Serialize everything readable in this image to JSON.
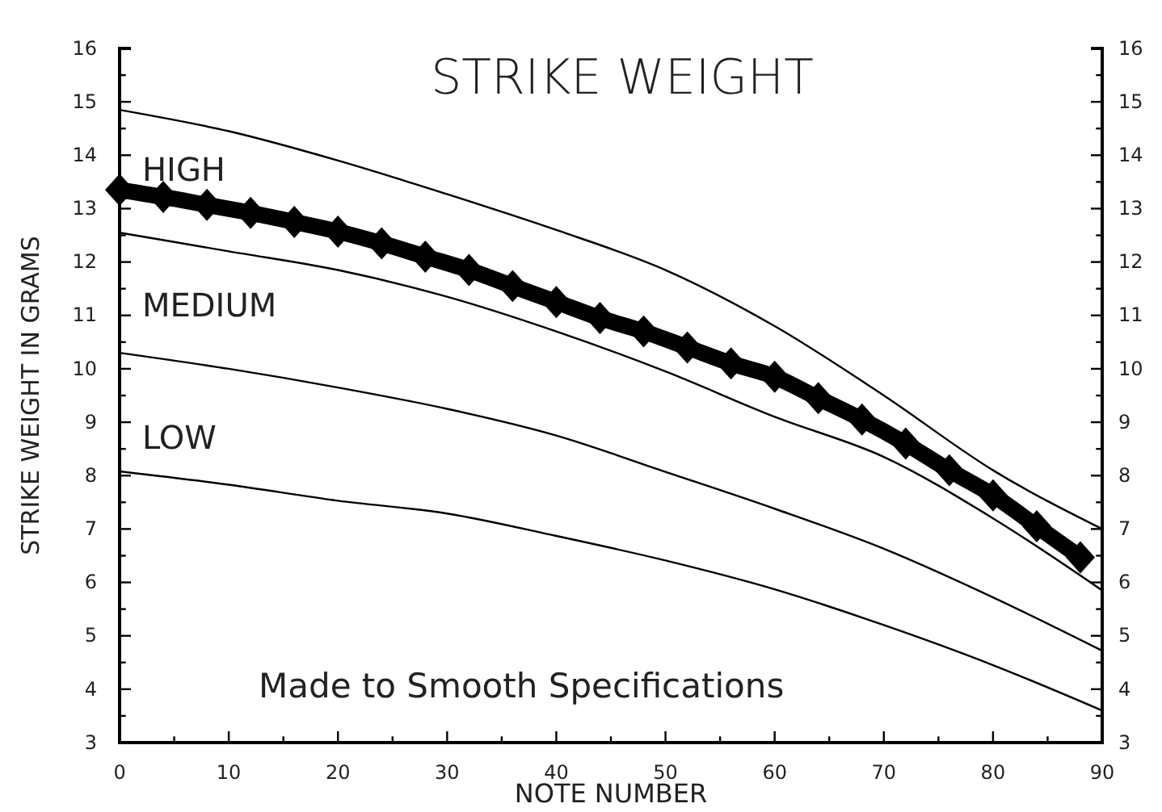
{
  "chart_data": {
    "type": "line",
    "title": "STRIKE WEIGHT",
    "xlabel": "NOTE NUMBER",
    "ylabel": "STRIKE WEIGHT IN GRAMS",
    "annotations": [
      "HIGH",
      "MEDIUM",
      "LOW",
      "Made to Smooth Specifications"
    ],
    "xlim": [
      0,
      90
    ],
    "xticks": [
      0,
      {
        "value": 5,
        "label": null
      },
      10,
      {
        "value": 15,
        "label": null
      },
      20,
      {
        "value": 25,
        "label": null
      },
      30,
      {
        "value": 35,
        "label": null
      },
      40,
      {
        "value": 45,
        "label": null
      },
      50,
      {
        "value": 55,
        "label": null
      },
      60,
      {
        "value": 65,
        "label": null
      },
      70,
      {
        "value": 75,
        "label": null
      },
      80,
      {
        "value": 85,
        "label": null
      },
      90
    ],
    "ylim": [
      3,
      16
    ],
    "yticks": [
      3,
      {
        "value": 3.5,
        "label": null
      },
      4,
      {
        "value": 4.5,
        "label": null
      },
      5,
      {
        "value": 5.5,
        "label": null
      },
      6,
      {
        "value": 6.5,
        "label": null
      },
      7,
      {
        "value": 7.5,
        "label": null
      },
      8,
      {
        "value": 8.5,
        "label": null
      },
      9,
      {
        "value": 9.5,
        "label": null
      },
      10,
      {
        "value": 10.5,
        "label": null
      },
      11,
      {
        "value": 11.5,
        "label": null
      },
      12,
      {
        "value": 12.5,
        "label": null
      },
      13,
      {
        "value": 13.5,
        "label": null
      },
      14,
      {
        "value": 14.5,
        "label": null
      },
      15,
      {
        "value": 15.5,
        "label": null
      },
      16
    ],
    "y2lim": [
      3,
      16
    ],
    "y2ticks": [
      3,
      {
        "value": 3.5,
        "label": null
      },
      4,
      {
        "value": 4.5,
        "label": null
      },
      5,
      {
        "value": 5.5,
        "label": null
      },
      6,
      {
        "value": 6.5,
        "label": null
      },
      7,
      {
        "value": 7.5,
        "label": null
      },
      8,
      {
        "value": 8.5,
        "label": null
      },
      9,
      {
        "value": 9.5,
        "label": null
      },
      10,
      {
        "value": 10.5,
        "label": null
      },
      11,
      {
        "value": 11.5,
        "label": null
      },
      12,
      {
        "value": 12.5,
        "label": null
      },
      13,
      {
        "value": 13.5,
        "label": null
      },
      14,
      {
        "value": 14.5,
        "label": null
      },
      15,
      {
        "value": 15.5,
        "label": null
      },
      16
    ],
    "grid": false,
    "marker": "none",
    "line_style": "solid",
    "series": [
      {
        "color": "#000000",
        "x": [
          0,
          10,
          20,
          30,
          40,
          50,
          60,
          70,
          80,
          90
        ],
        "values": [
          14.85,
          14.45,
          13.9,
          13.27,
          12.6,
          11.85,
          10.8,
          9.5,
          8.1,
          7.0
        ]
      },
      {
        "color": "#000000",
        "marker": "diamond",
        "x": [
          0,
          4,
          8,
          12,
          16,
          20,
          24,
          28,
          32,
          36,
          40,
          44,
          48,
          52,
          56,
          60,
          64,
          68,
          72,
          76,
          80,
          84,
          88
        ],
        "values": [
          13.35,
          13.22,
          13.07,
          12.92,
          12.75,
          12.57,
          12.35,
          12.1,
          11.85,
          11.55,
          11.25,
          10.95,
          10.7,
          10.4,
          10.1,
          9.85,
          9.45,
          9.05,
          8.6,
          8.1,
          7.63,
          7.05,
          6.47
        ]
      },
      {
        "color": "#000000",
        "x": [
          0,
          10,
          20,
          30,
          40,
          50,
          60,
          70,
          80,
          90
        ],
        "values": [
          12.55,
          12.2,
          11.85,
          11.35,
          10.7,
          9.95,
          9.1,
          8.35,
          7.2,
          5.85
        ]
      },
      {
        "color": "#000000",
        "x": [
          0,
          10,
          20,
          30,
          40,
          50,
          60,
          70,
          80,
          90
        ],
        "values": [
          10.3,
          10.0,
          9.65,
          9.25,
          8.75,
          8.07,
          7.38,
          6.63,
          5.72,
          4.72
        ]
      },
      {
        "color": "#000000",
        "x": [
          0,
          10,
          20,
          30,
          40,
          50,
          60,
          70,
          80,
          90
        ],
        "values": [
          8.08,
          7.83,
          7.53,
          7.29,
          6.87,
          6.41,
          5.87,
          5.2,
          4.45,
          3.6
        ]
      }
    ]
  }
}
